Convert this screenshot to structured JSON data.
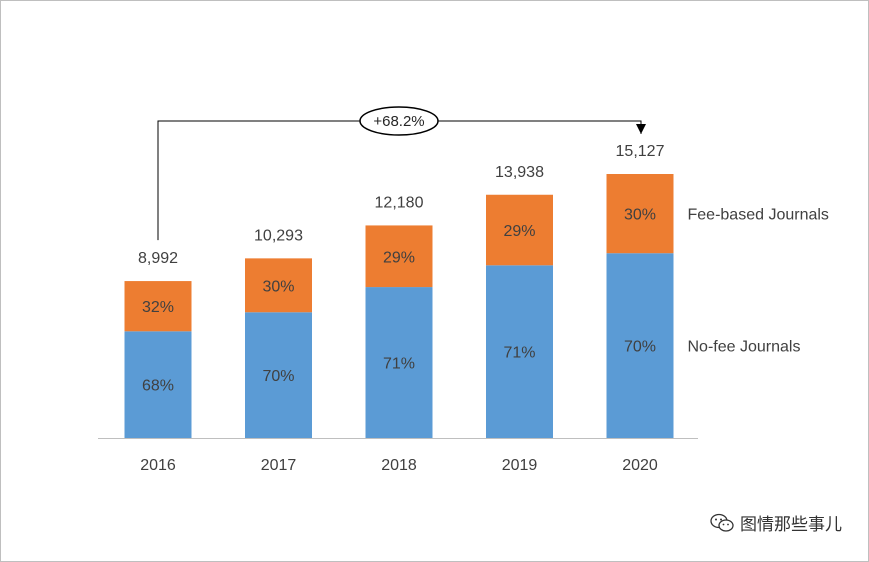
{
  "chart_data": {
    "type": "bar",
    "stacked": true,
    "categories": [
      "2016",
      "2017",
      "2018",
      "2019",
      "2020"
    ],
    "totals": [
      "8,992",
      "10,293",
      "12,180",
      "13,938",
      "15,127"
    ],
    "total_values": [
      8992,
      10293,
      12180,
      13938,
      15127
    ],
    "series": [
      {
        "name": "No-fee Journals",
        "color": "#5b9bd5",
        "shares": [
          "68%",
          "70%",
          "71%",
          "71%",
          "70%"
        ],
        "share_values": [
          0.68,
          0.7,
          0.71,
          0.71,
          0.7
        ]
      },
      {
        "name": "Fee-based Journals",
        "color": "#ed7d31",
        "shares": [
          "32%",
          "30%",
          "29%",
          "29%",
          "30%"
        ],
        "share_values": [
          0.32,
          0.3,
          0.29,
          0.29,
          0.3
        ]
      }
    ],
    "ylim": [
      0,
      15127
    ],
    "grid": false,
    "legend_placement": "right",
    "annotation": {
      "text": "+68.2%",
      "from_category": "2016",
      "to_category": "2020"
    }
  },
  "watermark": {
    "text": "图情那些事儿",
    "icon": "wechat-icon"
  }
}
